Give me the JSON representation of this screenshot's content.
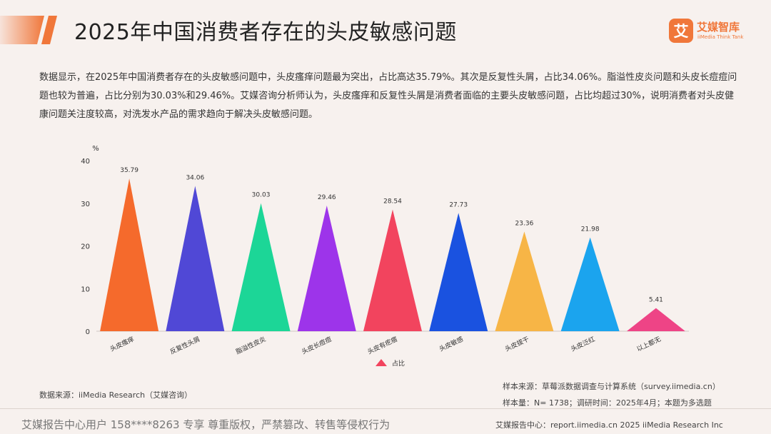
{
  "header": {
    "title": "2025年中国消费者存在的头皮敏感问题",
    "accent_color": "#f0773a"
  },
  "logo": {
    "mark": "艾",
    "name": "艾媒智库",
    "subtitle": "iiMedia Think Tank"
  },
  "summary": "数据显示，在2025年中国消费者存在的头皮敏感问题中，头皮瘙痒问题最为突出，占比高达35.79%。其次是反复性头屑，占比34.06%。脂溢性皮炎问题和头皮长痘痘问题也较为普遍，占比分别为30.03%和29.46%。艾媒咨询分析师认为，头皮瘙痒和反复性头屑是消费者面临的主要头皮敏感问题，占比均超过30%，说明消费者对头皮健康问题关注度较高，对洗发水产品的需求趋向于解决头皮敏感问题。",
  "chart_data": {
    "type": "bar",
    "mark_shape": "triangle",
    "unit_label": "%",
    "categories": [
      "头皮瘙痒",
      "反复性头屑",
      "脂溢性皮炎",
      "头皮长痘痘",
      "头皮有疙瘩",
      "头皮敏感",
      "头皮拔干",
      "头皮泛红",
      "以上都无"
    ],
    "series": [
      {
        "name": "占比",
        "values": [
          35.79,
          34.06,
          30.03,
          29.46,
          28.54,
          27.73,
          23.36,
          21.98,
          5.41
        ],
        "value_labels": [
          "35.79",
          "34.06",
          "30.03",
          "29.46",
          "28.54",
          "27.73",
          "23.36",
          "21.98",
          "5.41"
        ],
        "colors": [
          "#f56a2c",
          "#5048d6",
          "#1cd697",
          "#9d34ea",
          "#f2445e",
          "#1a52e0",
          "#f7b546",
          "#1ba4ee",
          "#ee4486"
        ]
      }
    ],
    "ylim": [
      0,
      40
    ],
    "yticks": [
      0,
      10,
      20,
      30,
      40
    ],
    "grid": false,
    "legend_position": "bottom-center",
    "legend_color": "#f2445e"
  },
  "source": {
    "left": "数据来源：iiMedia Research（艾媒咨询）",
    "sample_source": "样本来源：草莓派数据调查与计算系统（survey.iimedia.cn）",
    "sample_size": "样本量：N= 1738；调研时间：2025年4月；本题为多选题"
  },
  "footer": {
    "watermark": "艾媒报告中心用户 158****8263 专享 尊重版权，严禁篡改、转售等侵权行为",
    "right": "艾媒报告中心：report.iimedia.cn  2025 iiMedia Research Inc"
  }
}
